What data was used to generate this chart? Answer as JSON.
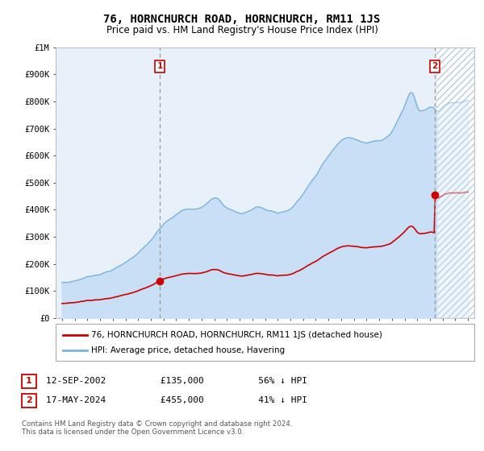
{
  "title": "76, HORNCHURCH ROAD, HORNCHURCH, RM11 1JS",
  "subtitle": "Price paid vs. HM Land Registry's House Price Index (HPI)",
  "legend_line1": "76, HORNCHURCH ROAD, HORNCHURCH, RM11 1JS (detached house)",
  "legend_line2": "HPI: Average price, detached house, Havering",
  "footer": "Contains HM Land Registry data © Crown copyright and database right 2024.\nThis data is licensed under the Open Government Licence v3.0.",
  "hpi_color": "#7ab3e0",
  "hpi_fill_color": "#c8dff5",
  "price_color": "#cc0000",
  "marker_edge_color": "#cc0000",
  "bg_color": "#e8f0fa",
  "hatch_bg_color": "#ffffff",
  "hatch_line_color": "#b8cce4",
  "sale1_price": 135000,
  "sale2_price": 455000,
  "sale1_year": 2002.7,
  "sale2_year": 2024.38,
  "xmin": 1994.5,
  "xmax": 2027.5,
  "ymin": 0,
  "ymax": 1000000,
  "yticks": [
    0,
    100000,
    200000,
    300000,
    400000,
    500000,
    600000,
    700000,
    800000,
    900000,
    1000000
  ],
  "ylabels": [
    "£0",
    "£100K",
    "£200K",
    "£300K",
    "£400K",
    "£500K",
    "£600K",
    "£700K",
    "£800K",
    "£900K",
    "£1M"
  ]
}
